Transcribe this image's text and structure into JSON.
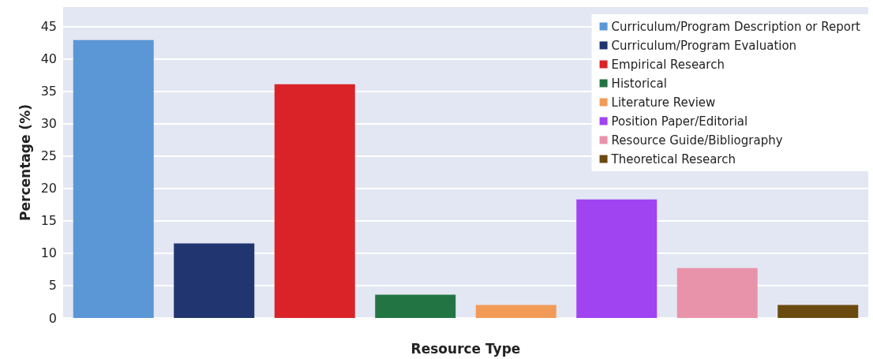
{
  "chart_data": {
    "type": "bar",
    "xlabel": "Resource Type",
    "ylabel": "Percentage (%)",
    "categories": [
      null,
      null,
      null,
      null,
      null,
      null,
      null,
      null
    ],
    "stacked": true,
    "series": [
      {
        "name": "Curriculum/Program Description or Report",
        "color": "#5b97d6",
        "values": [
          42.9,
          null,
          null,
          null,
          null,
          null,
          null,
          null
        ]
      },
      {
        "name": "Curriculum/Program Evaluation",
        "color": "#213670",
        "values": [
          null,
          11.5,
          null,
          null,
          null,
          null,
          null,
          null
        ]
      },
      {
        "name": "Empirical Research",
        "color": "#da2329",
        "values": [
          null,
          null,
          36.1,
          null,
          null,
          null,
          null,
          null
        ]
      },
      {
        "name": "Historical",
        "color": "#237443",
        "values": [
          null,
          null,
          null,
          3.6,
          null,
          null,
          null,
          null
        ]
      },
      {
        "name": "Literature Review",
        "color": "#f29b57",
        "values": [
          null,
          null,
          null,
          null,
          2.0,
          null,
          null,
          null
        ]
      },
      {
        "name": "Position Paper/Editorial",
        "color": "#a044f2",
        "values": [
          null,
          null,
          null,
          null,
          null,
          18.3,
          null,
          null
        ]
      },
      {
        "name": "Resource Guide/Bibliography",
        "color": "#e993ab",
        "values": [
          null,
          null,
          null,
          null,
          null,
          null,
          7.7,
          null
        ]
      },
      {
        "name": "Theoretical Research",
        "color": "#6b4a10",
        "values": [
          null,
          null,
          null,
          null,
          null,
          null,
          null,
          2.0
        ]
      }
    ],
    "ylim": [
      0,
      48
    ],
    "yticks": [
      0,
      5,
      10,
      15,
      20,
      25,
      30,
      35,
      40,
      45
    ],
    "grid": "y",
    "legend": "top right"
  }
}
